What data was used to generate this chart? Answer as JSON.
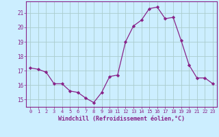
{
  "x": [
    0,
    1,
    2,
    3,
    4,
    5,
    6,
    7,
    8,
    9,
    10,
    11,
    12,
    13,
    14,
    15,
    16,
    17,
    18,
    19,
    20,
    21,
    22,
    23
  ],
  "y": [
    17.2,
    17.1,
    16.9,
    16.1,
    16.1,
    15.6,
    15.5,
    15.1,
    14.8,
    15.5,
    16.6,
    16.7,
    19.0,
    20.1,
    20.5,
    21.3,
    21.4,
    20.6,
    20.7,
    19.1,
    17.4,
    16.5,
    16.5,
    16.1
  ],
  "line_color": "#882288",
  "marker": "D",
  "marker_size": 2.2,
  "bg_color": "#cceeff",
  "grid_color": "#aacccc",
  "xlabel": "Windchill (Refroidissement éolien,°C)",
  "xlabel_color": "#882288",
  "tick_color": "#882288",
  "spine_color": "#882288",
  "ylim": [
    14.5,
    21.8
  ],
  "yticks": [
    15,
    16,
    17,
    18,
    19,
    20,
    21
  ],
  "xlim": [
    -0.5,
    23.5
  ],
  "xticks": [
    0,
    1,
    2,
    3,
    4,
    5,
    6,
    7,
    8,
    9,
    10,
    11,
    12,
    13,
    14,
    15,
    16,
    17,
    18,
    19,
    20,
    21,
    22,
    23
  ]
}
